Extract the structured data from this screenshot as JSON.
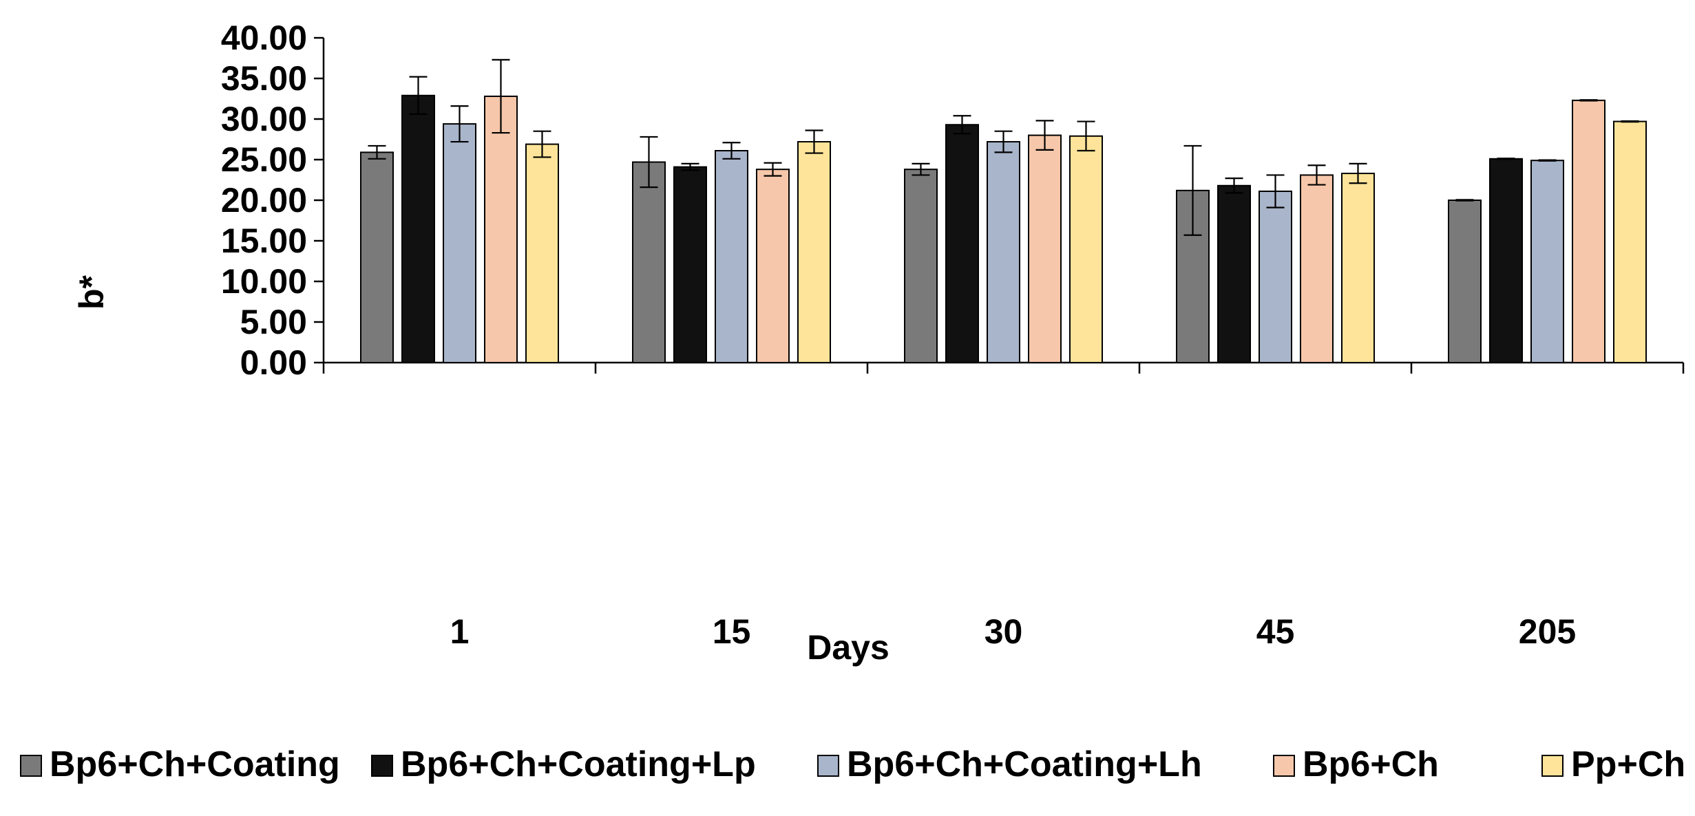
{
  "chart_data": {
    "type": "bar",
    "title": "",
    "xlabel": "Days",
    "ylabel": "b*",
    "ylim": [
      0,
      40
    ],
    "yticks": [
      "0.00",
      "5.00",
      "10.00",
      "15.00",
      "20.00",
      "25.00",
      "30.00",
      "35.00",
      "40.00"
    ],
    "grid": false,
    "legend_position": "bottom",
    "categories": [
      "1",
      "15",
      "30",
      "45",
      "205"
    ],
    "series": [
      {
        "name": "Bp6+Ch+Coating",
        "color": "#7a7a7a",
        "values": [
          25.9,
          24.7,
          23.8,
          21.2,
          20.0
        ],
        "errors": [
          0.8,
          3.1,
          0.7,
          5.5,
          0.05
        ]
      },
      {
        "name": "Bp6+Ch+Coating+Lp",
        "color": "#111111",
        "values": [
          32.9,
          24.1,
          29.3,
          21.8,
          25.1
        ],
        "errors": [
          2.3,
          0.4,
          1.1,
          0.9,
          0.05
        ]
      },
      {
        "name": "Bp6+Ch+Coating+Lh",
        "color": "#a9b5cb",
        "values": [
          29.4,
          26.1,
          27.2,
          21.1,
          24.9
        ],
        "errors": [
          2.2,
          1.0,
          1.3,
          2.0,
          0.05
        ]
      },
      {
        "name": "Bp6+Ch",
        "color": "#f6c7aa",
        "values": [
          32.8,
          23.8,
          28.0,
          23.1,
          32.3
        ],
        "errors": [
          4.5,
          0.8,
          1.8,
          1.2,
          0.05
        ]
      },
      {
        "name": "Pp+Ch",
        "color": "#fde49a",
        "values": [
          26.9,
          27.2,
          27.9,
          23.3,
          29.7
        ],
        "errors": [
          1.6,
          1.4,
          1.8,
          1.2,
          0.05
        ]
      }
    ]
  }
}
